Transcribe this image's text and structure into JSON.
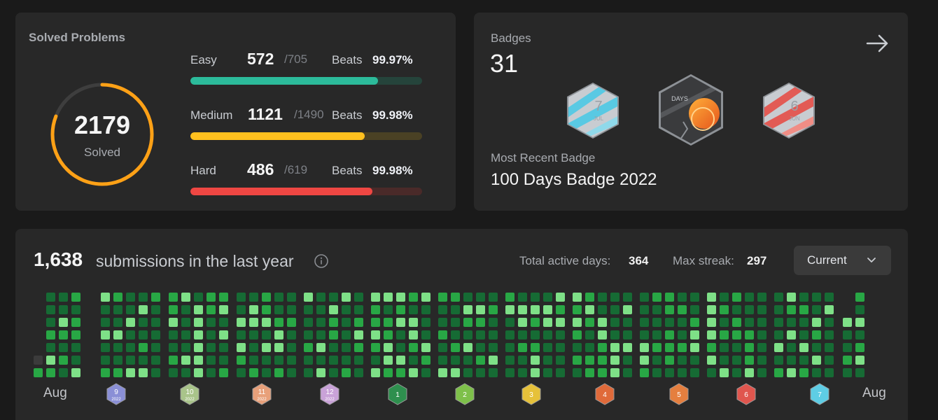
{
  "solved": {
    "title": "Solved Problems",
    "total": "2179",
    "total_label": "Solved",
    "ring_color": "#ffa116",
    "rows": [
      {
        "label": "Easy",
        "count": "572",
        "total": "/705",
        "beats_label": "Beats",
        "beats": "99.97%",
        "color": "#2cbb9b",
        "progress": 0.811
      },
      {
        "label": "Medium",
        "count": "1121",
        "total": "/1490",
        "beats_label": "Beats",
        "beats": "99.98%",
        "color": "#ffc01e",
        "progress": 0.752
      },
      {
        "label": "Hard",
        "count": "486",
        "total": "/619",
        "beats_label": "Beats",
        "beats": "99.98%",
        "color": "#ef4743",
        "progress": 0.785
      }
    ]
  },
  "badges": {
    "title": "Badges",
    "count": "31",
    "arrow_icon": "arrow-right-icon",
    "recent_label": "Most Recent Badge",
    "recent_name": "100 Days Badge 2022",
    "items": [
      {
        "icon": "july-badge-icon",
        "text": "7",
        "sub": "JUL"
      },
      {
        "icon": "100-days-badge-icon",
        "text": "DAYS",
        "sub": ""
      },
      {
        "icon": "june-badge-icon",
        "text": "6",
        "sub": "JUN"
      }
    ]
  },
  "submissions": {
    "count": "1,638",
    "text": "submissions in the last year",
    "info_icon": "info-icon",
    "active_label": "Total active days:",
    "active_value": "364",
    "streak_label": "Max streak:",
    "streak_value": "297",
    "dropdown_value": "Current",
    "months_left": "Aug",
    "months_right": "Aug",
    "month_badges": [
      {
        "text": "9",
        "year": "2022",
        "color": "#8a8fd6"
      },
      {
        "text": "10",
        "year": "2022",
        "color": "#a9c48a"
      },
      {
        "text": "11",
        "year": "2022",
        "color": "#e8a07a"
      },
      {
        "text": "12",
        "year": "2022",
        "color": "#c9a2d8"
      },
      {
        "text": "1",
        "year": "",
        "color": "#2e8f4e"
      },
      {
        "text": "2",
        "year": "",
        "color": "#7ec04a"
      },
      {
        "text": "3",
        "year": "",
        "color": "#e6c13a"
      },
      {
        "text": "4",
        "year": "",
        "color": "#e06a3a"
      },
      {
        "text": "5",
        "year": "",
        "color": "#e57f3f"
      },
      {
        "text": "6",
        "year": "",
        "color": "#e0564e"
      },
      {
        "text": "7",
        "year": "",
        "color": "#5ecde5"
      }
    ],
    "heat_colors": [
      "#3b3b3b",
      "#166b34",
      "#28a745",
      "#7ee087"
    ]
  }
}
